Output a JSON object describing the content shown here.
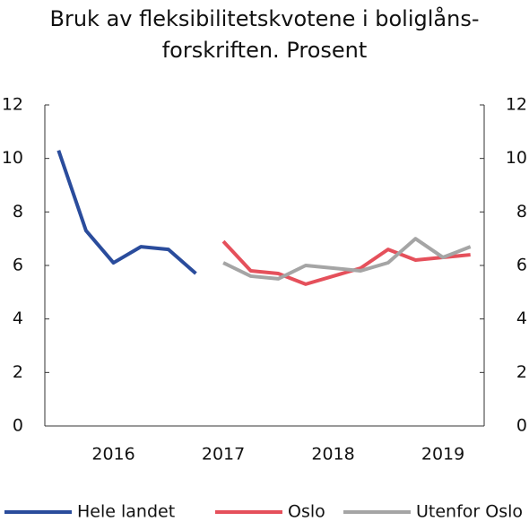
{
  "chart_data": {
    "type": "line",
    "title": [
      "Bruk av fleksibilitetskvotene i boliglåns-",
      "forskriften. Prosent"
    ],
    "categories": [
      null,
      null,
      "2016",
      null,
      null,
      null,
      "2017",
      null,
      null,
      null,
      "2018",
      null,
      null,
      null,
      "2019",
      null
    ],
    "series": [
      {
        "name": "Hele landet",
        "color": "#2a4c9c",
        "values": [
          10.3,
          7.3,
          6.1,
          6.7,
          6.6,
          5.7,
          null,
          null,
          null,
          null,
          null,
          null,
          null,
          null,
          null,
          null
        ]
      },
      {
        "name": "Oslo",
        "color": "#e5505b",
        "values": [
          null,
          null,
          null,
          null,
          null,
          null,
          6.9,
          5.8,
          5.7,
          5.3,
          5.6,
          5.9,
          6.6,
          6.2,
          6.3,
          6.4
        ]
      },
      {
        "name": "Utenfor Oslo",
        "color": "#a5a5a5",
        "values": [
          null,
          null,
          null,
          null,
          null,
          null,
          6.1,
          5.6,
          5.5,
          6.0,
          5.9,
          5.8,
          6.1,
          7.0,
          6.3,
          6.7
        ]
      }
    ],
    "ylim": [
      0,
      12
    ],
    "yticks": [
      0,
      2,
      4,
      6,
      8,
      10,
      12
    ],
    "y2lim": [
      0,
      12
    ],
    "y2ticks": [
      0,
      2,
      4,
      6,
      8,
      10,
      12
    ],
    "legend": "bottom"
  }
}
